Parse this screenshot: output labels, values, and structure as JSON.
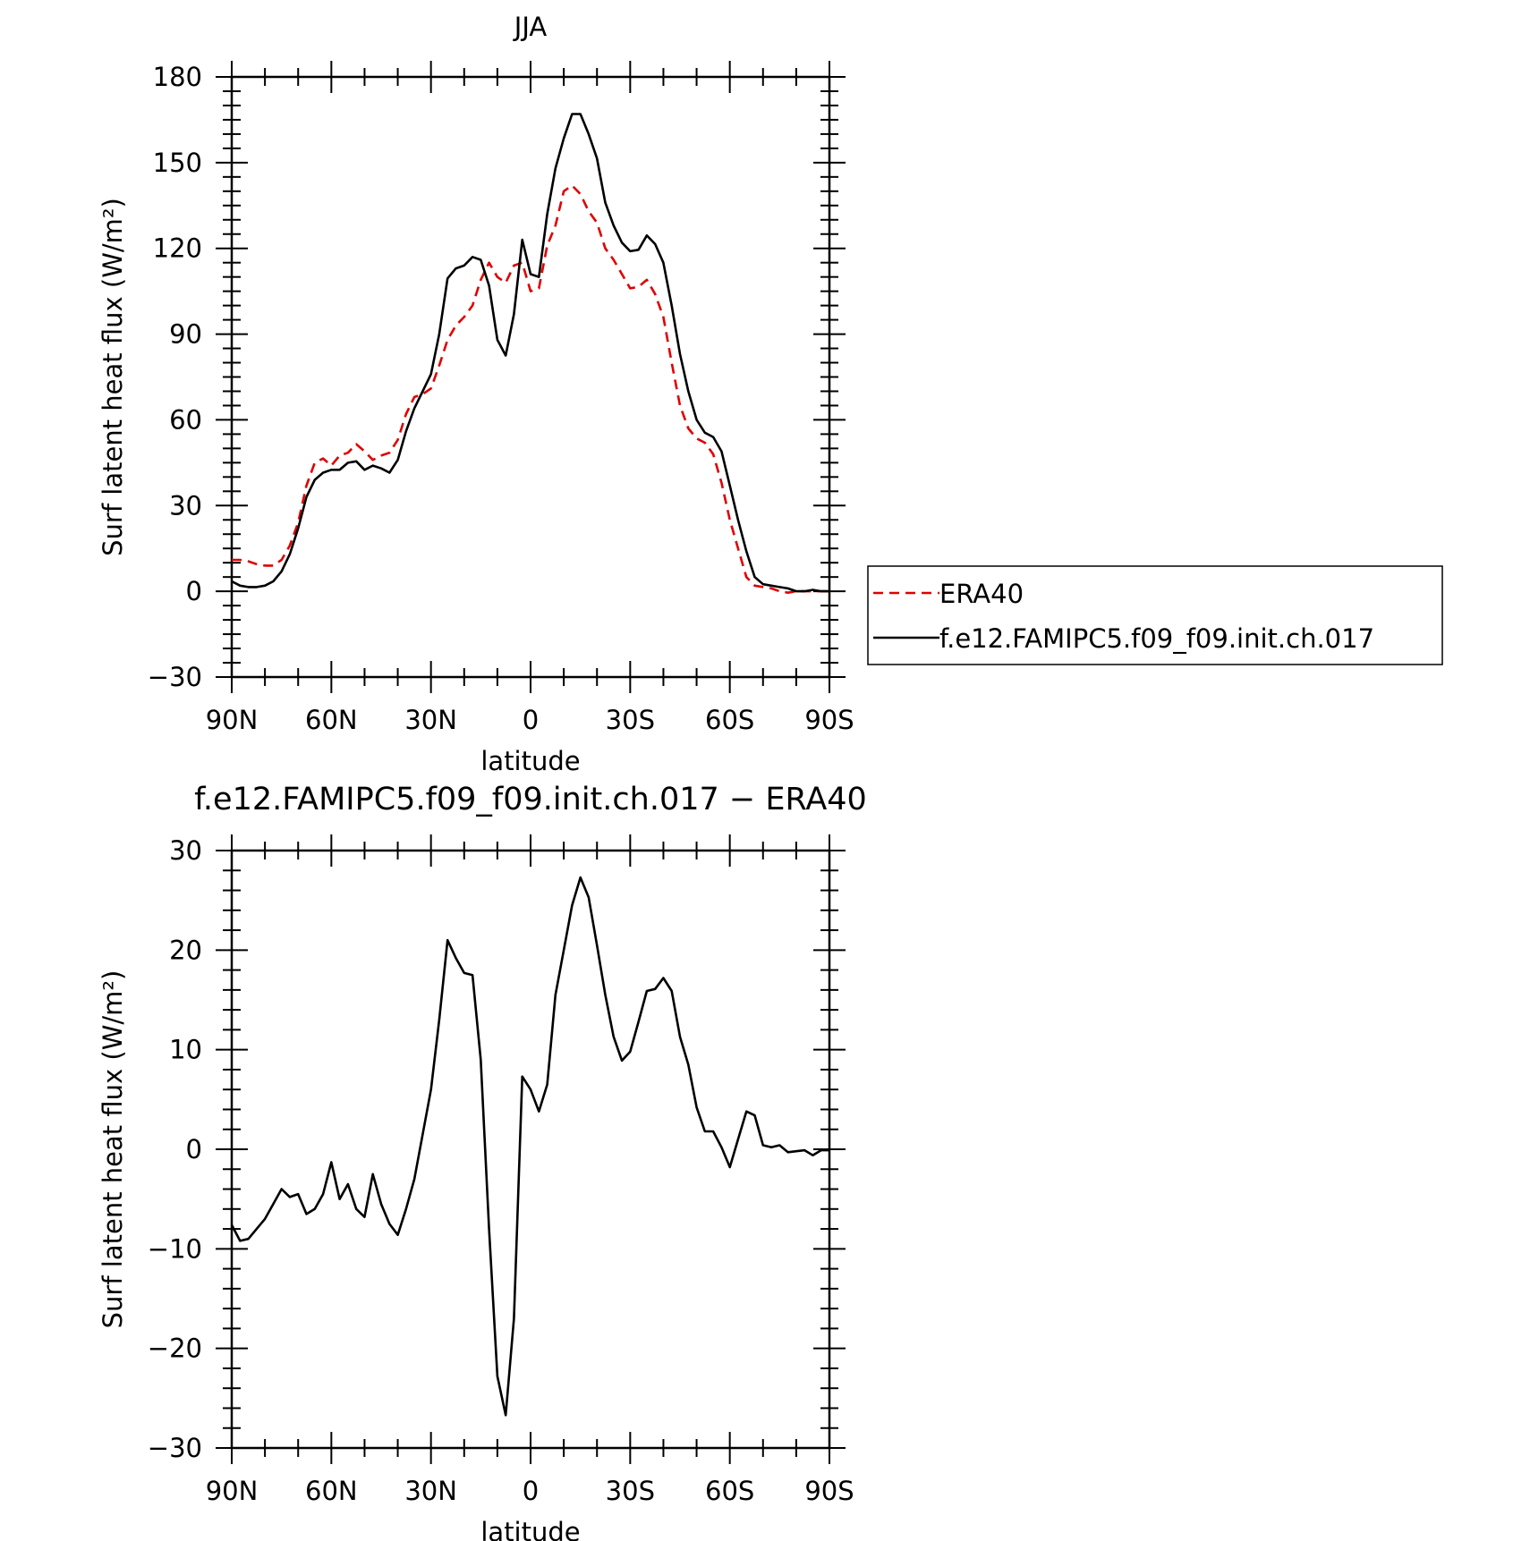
{
  "chart_data": [
    {
      "type": "line",
      "title": "JJA",
      "xlabel": "latitude",
      "ylabel": "Surf latent heat flux (W/m²)",
      "xlim": [
        90,
        -90
      ],
      "ylim": [
        -30,
        180
      ],
      "x_ticks": [
        90,
        60,
        30,
        0,
        -30,
        -60,
        -90
      ],
      "x_tick_labels": [
        "90N",
        "60N",
        "30N",
        "0",
        "30S",
        "60S",
        "90S"
      ],
      "y_ticks": [
        -30,
        0,
        30,
        60,
        90,
        120,
        150,
        180
      ],
      "y_tick_labels": [
        "−30",
        "0",
        "30",
        "60",
        "90",
        "120",
        "150",
        "180"
      ],
      "grid": false,
      "legend": {
        "placement": "right",
        "entries": [
          "ERA40",
          "f.e12.FAMIPC5.f09_f09.init.ch.017"
        ]
      },
      "series": [
        {
          "name": "ERA40",
          "color": "#e00000",
          "dash": "dashed",
          "x": [
            90,
            87.5,
            85,
            82.5,
            80,
            77.5,
            75,
            72.5,
            70,
            67.5,
            65,
            62.5,
            60,
            57.5,
            55,
            52.5,
            50,
            47.5,
            45,
            42.5,
            40,
            37.5,
            35,
            32.5,
            30,
            27.5,
            25,
            22.5,
            20,
            17.5,
            15,
            12.5,
            10,
            7.5,
            5,
            2.5,
            0,
            -2.5,
            -5,
            -7.5,
            -10,
            -12.5,
            -15,
            -17.5,
            -20,
            -22.5,
            -25,
            -27.5,
            -30,
            -32.5,
            -35,
            -37.5,
            -40,
            -42.5,
            -45,
            -47.5,
            -50,
            -52.5,
            -55,
            -57.5,
            -60,
            -62.5,
            -65,
            -67.5,
            -70,
            -72.5,
            -75,
            -77.5,
            -80,
            -82.5,
            -85,
            -87.5,
            -90
          ],
          "y": [
            11,
            11,
            10.5,
            9.5,
            9,
            9,
            11,
            16,
            24,
            37,
            45,
            46.5,
            44,
            47.5,
            48.5,
            51.5,
            49,
            46,
            47.5,
            48.5,
            53,
            62,
            68,
            69,
            71,
            79,
            88,
            93,
            96,
            100,
            109,
            115,
            110,
            108,
            114,
            115,
            105,
            106,
            121,
            128,
            140,
            142,
            139,
            133,
            129,
            120,
            116,
            111,
            106,
            106.5,
            109,
            104,
            96,
            80,
            65,
            57,
            53.5,
            52,
            48,
            38,
            25,
            15,
            5,
            2,
            1.5,
            1,
            0,
            -0.5,
            0,
            0,
            0,
            0,
            0
          ]
        },
        {
          "name": "f.e12.FAMIPC5.f09_f09.init.ch.017",
          "color": "#000000",
          "dash": "solid",
          "x": [
            90,
            87.5,
            85,
            82.5,
            80,
            77.5,
            75,
            72.5,
            70,
            67.5,
            65,
            62.5,
            60,
            57.5,
            55,
            52.5,
            50,
            47.5,
            45,
            42.5,
            40,
            37.5,
            35,
            32.5,
            30,
            27.5,
            25,
            22.5,
            20,
            17.5,
            15,
            12.5,
            10,
            7.5,
            5,
            2.5,
            0,
            -2.5,
            -5,
            -7.5,
            -10,
            -12.5,
            -15,
            -17.5,
            -20,
            -22.5,
            -25,
            -27.5,
            -30,
            -32.5,
            -35,
            -37.5,
            -40,
            -42.5,
            -45,
            -47.5,
            -50,
            -52.5,
            -55,
            -57.5,
            -60,
            -62.5,
            -65,
            -67.5,
            -70,
            -72.5,
            -75,
            -77.5,
            -80,
            -82.5,
            -85,
            -87.5,
            -90
          ],
          "y": [
            3.5,
            2,
            1.5,
            1.5,
            2,
            3.5,
            7,
            13,
            22,
            33,
            39,
            41.5,
            42.5,
            42.5,
            45,
            45.5,
            42.5,
            44,
            43,
            41.5,
            46,
            56,
            64,
            70,
            76,
            90,
            109.5,
            113,
            114,
            117,
            116,
            107,
            88,
            82.5,
            97,
            123,
            111,
            110,
            132,
            148,
            158.5,
            167,
            167,
            160,
            151.5,
            136,
            128,
            122,
            119,
            119.5,
            124.5,
            121.5,
            115,
            100,
            83,
            70,
            60,
            55.5,
            54,
            49,
            37,
            25,
            14,
            5,
            2.5,
            2,
            1.5,
            1,
            0,
            0,
            0.5,
            0,
            0
          ]
        }
      ]
    },
    {
      "type": "line",
      "title": "f.e12.FAMIPC5.f09_f09.init.ch.017 − ERA40",
      "xlabel": "latitude",
      "ylabel": "Surf latent heat flux (W/m²)",
      "xlim": [
        90,
        -90
      ],
      "ylim": [
        -30,
        30
      ],
      "x_ticks": [
        90,
        60,
        30,
        0,
        -30,
        -60,
        -90
      ],
      "x_tick_labels": [
        "90N",
        "60N",
        "30N",
        "0",
        "30S",
        "60S",
        "90S"
      ],
      "y_ticks": [
        -30,
        -20,
        -10,
        0,
        10,
        20,
        30
      ],
      "y_tick_labels": [
        "−30",
        "−20",
        "−10",
        "0",
        "10",
        "20",
        "30"
      ],
      "grid": false,
      "series": [
        {
          "color": "#000000",
          "dash": "solid",
          "x": [
            90,
            87.5,
            85,
            82.5,
            80,
            77.5,
            75,
            72.5,
            70,
            67.5,
            65,
            62.5,
            60,
            57.5,
            55,
            52.5,
            50,
            47.5,
            45,
            42.5,
            40,
            37.5,
            35,
            32.5,
            30,
            27.5,
            25,
            22.5,
            20,
            17.5,
            15,
            12.5,
            10,
            7.5,
            5,
            2.5,
            0,
            -2.5,
            -5,
            -7.5,
            -10,
            -12.5,
            -15,
            -17.5,
            -20,
            -22.5,
            -25,
            -27.5,
            -30,
            -32.5,
            -35,
            -37.5,
            -40,
            -42.5,
            -45,
            -47.5,
            -50,
            -52.5,
            -55,
            -57.5,
            -60,
            -62.5,
            -65,
            -67.5,
            -70,
            -72.5,
            -75,
            -77.5,
            -80,
            -82.5,
            -85,
            -87.5,
            -90
          ],
          "y": [
            -7.6,
            -9.2,
            -9,
            -8,
            -7,
            -5.5,
            -4,
            -4.8,
            -4.5,
            -6.5,
            -6,
            -4.5,
            -1.3,
            -5,
            -3.5,
            -6,
            -6.8,
            -2.5,
            -5.5,
            -7.5,
            -8.6,
            -6,
            -3,
            1.5,
            6,
            13,
            21,
            19.2,
            17.7,
            17.5,
            9,
            -8,
            -22.8,
            -26.7,
            -17,
            7.3,
            6,
            3.8,
            6.5,
            15.5,
            20,
            24.5,
            27.3,
            25.3,
            20.5,
            15.5,
            11.3,
            8.9,
            9.8,
            12.8,
            15.9,
            16.1,
            17.2,
            15.9,
            11.3,
            8.5,
            4.2,
            1.8,
            1.8,
            0.2,
            -1.8,
            1,
            3.8,
            3.4,
            0.4,
            0.2,
            0.4,
            -0.3,
            -0.2,
            -0.1,
            -0.6,
            -0.1,
            -0.1
          ]
        }
      ]
    }
  ]
}
